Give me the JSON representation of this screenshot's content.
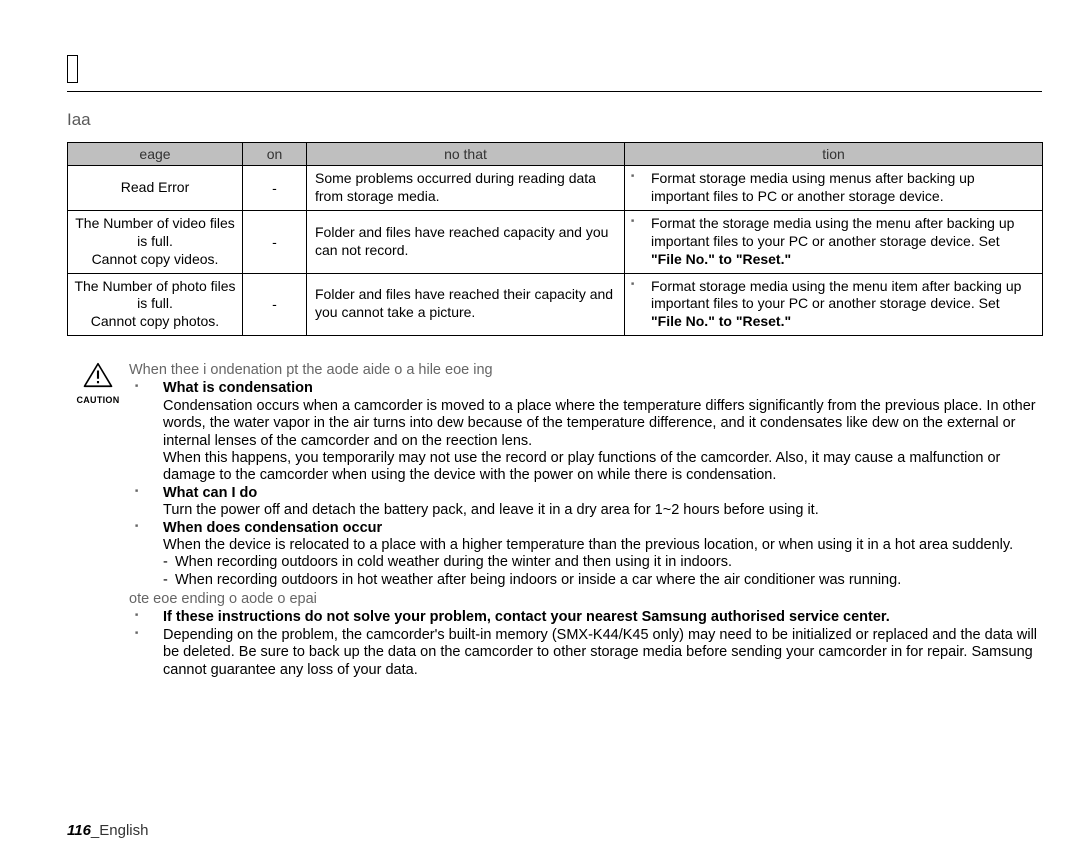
{
  "subhead": "Iaa",
  "table": {
    "headers": [
      "eage",
      "on",
      "no that",
      "tion"
    ],
    "rows": [
      {
        "message": "Read Error",
        "icon": "-",
        "info": "Some problems occurred during  reading data from storage media.",
        "action_prefix": "Format storage media using menus after backing up important files to PC or another storage device.",
        "action_bold": ""
      },
      {
        "message": "The Number of video files is full. Cannot copy videos.",
        "icon": "-",
        "info": "Folder and files have reached capacity and you can not record.",
        "action_prefix": "Format the storage media using the menu after backing up important files to your PC or another storage device. Set",
        "action_bold": "\"File No.\" to \"Reset.\""
      },
      {
        "message": "The Number of photo files is full. Cannot copy photos.",
        "icon": "-",
        "info": "Folder and files have reached their capacity and you cannot take a picture.",
        "action_prefix": "Format storage media using the menu item after backing up important files to your PC or another storage device. Set",
        "action_bold": "\"File No.\" to \"Reset.\""
      }
    ]
  },
  "caution_label": "CAUTION",
  "caution_intro": "When thee i ondenation pt the aode aide o a hile eoe ing",
  "caution_items": [
    {
      "head": "What is condensation",
      "paras": [
        "Condensation occurs when a camcorder is moved to a place where the temperature differs significantly from the previous place. In other words, the water vapor in the air turns into dew because of the temperature difference, and it condensates like dew on the external or internal lenses of the camcorder and on the reection lens.",
        "When this happens, you temporarily may not use the record or play functions of the camcorder. Also, it may cause a malfunction or damage to the camcorder when using the device with the power on while there is condensation."
      ],
      "dashes": []
    },
    {
      "head": "What can I do",
      "paras": [
        "Turn the power off and detach the battery pack, and leave it in a dry area for 1~2 hours before using it."
      ],
      "dashes": []
    },
    {
      "head": "When does condensation occur",
      "paras": [
        "When the device is relocated to a place with a higher temperature than the previous location, or when using it in a hot area suddenly."
      ],
      "dashes": [
        "When recording outdoors in cold weather during the winter and then using it in indoors.",
        "When recording outdoors in hot weather after being indoors or inside a car where the air conditioner was running."
      ]
    }
  ],
  "note_intro": "ote eoe ending o aode o epai",
  "note_items": [
    {
      "head": "If these instructions do not solve your problem, contact your nearest Samsung authorised service center.",
      "paras": [],
      "dashes": []
    },
    {
      "head": "",
      "paras": [
        "Depending on the problem, the camcorder's built-in memory (SMX-K44/K45 only) may need to be initialized or replaced and the data will be deleted. Be sure to back up the data on the camcorder to other storage media before sending your camcorder in for repair. Samsung cannot guarantee any loss of your data."
      ],
      "dashes": []
    }
  ],
  "footer_page": "116",
  "footer_lang": "_English"
}
